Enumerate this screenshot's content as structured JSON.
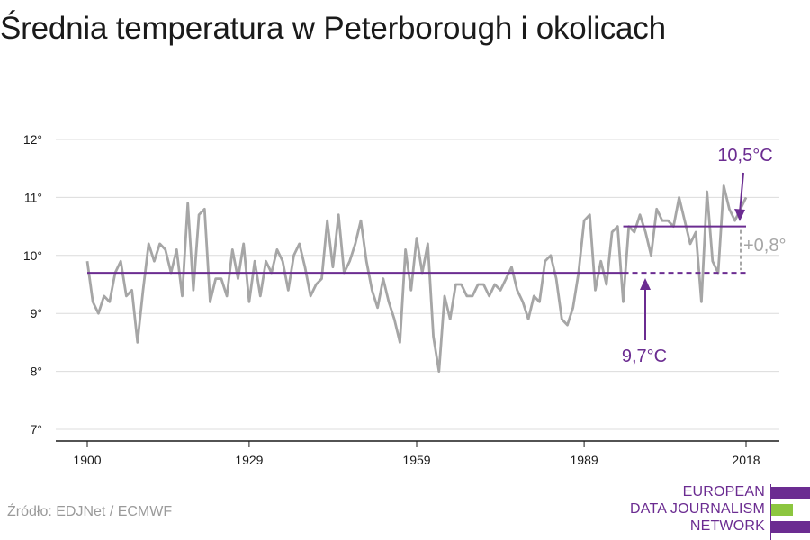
{
  "page": {
    "title": "Średnia temperatura w Peterborough i okolicach",
    "source": "Źródło: EDJNet / ECMWF"
  },
  "logo": {
    "lines": [
      "EUROPEAN",
      "DATA JOURNALISM",
      "NETWORK"
    ],
    "colors": {
      "purple": "#6b2c91",
      "green": "#8cc63f"
    }
  },
  "chart_data": {
    "type": "line",
    "title": "Średnia temperatura w Peterborough i okolicach",
    "xlabel": "",
    "ylabel": "",
    "xlim": [
      1900,
      2018
    ],
    "ylim": [
      7,
      12
    ],
    "x_ticks": [
      1900,
      1929,
      1959,
      1989,
      2018
    ],
    "y_ticks": [
      7,
      8,
      9,
      10,
      11,
      12
    ],
    "y_tick_labels": [
      "7°",
      "8°",
      "9°",
      "10°",
      "11°",
      "12°"
    ],
    "grid": "horizontal",
    "colors": {
      "series": "#a6a6a6",
      "reference": "#6b2c91",
      "difference": "#a6a6a6"
    },
    "series": [
      {
        "years": [
          1900,
          1901,
          1902,
          1903,
          1904,
          1905,
          1906,
          1907,
          1908,
          1909,
          1910,
          1911,
          1912,
          1913,
          1914,
          1915,
          1916,
          1917,
          1918,
          1919,
          1920,
          1921,
          1922,
          1923,
          1924,
          1925,
          1926,
          1927,
          1928,
          1929,
          1930,
          1931,
          1932,
          1933,
          1934,
          1935,
          1936,
          1937,
          1938,
          1939,
          1940,
          1941,
          1942,
          1943,
          1944,
          1945,
          1946,
          1947,
          1948,
          1949,
          1950,
          1951,
          1952,
          1953,
          1954,
          1955,
          1956,
          1957,
          1958,
          1959,
          1960,
          1961,
          1962,
          1963,
          1964,
          1965,
          1966,
          1967,
          1968,
          1969,
          1970,
          1971,
          1972,
          1973,
          1974,
          1975,
          1976,
          1977,
          1978,
          1979,
          1980,
          1981,
          1982,
          1983,
          1984,
          1985,
          1986,
          1987,
          1988,
          1989,
          1990,
          1991,
          1992,
          1993,
          1994,
          1995,
          1996,
          1997,
          1998,
          1999,
          2000,
          2001,
          2002,
          2003,
          2004,
          2005,
          2006,
          2007,
          2008,
          2009,
          2010,
          2011,
          2012,
          2013,
          2014,
          2015,
          2016,
          2017,
          2018
        ],
        "values": [
          9.9,
          9.2,
          9.0,
          9.3,
          9.2,
          9.7,
          9.9,
          9.3,
          9.4,
          8.5,
          9.4,
          10.2,
          9.9,
          10.2,
          10.1,
          9.7,
          10.1,
          9.3,
          10.9,
          9.4,
          10.7,
          10.8,
          9.2,
          9.6,
          9.6,
          9.3,
          10.1,
          9.6,
          10.2,
          9.2,
          9.9,
          9.3,
          9.9,
          9.7,
          10.1,
          9.9,
          9.4,
          10.0,
          10.2,
          9.8,
          9.3,
          9.5,
          9.6,
          10.6,
          9.8,
          10.7,
          9.7,
          9.9,
          10.2,
          10.6,
          9.9,
          9.4,
          9.1,
          9.6,
          9.2,
          8.9,
          8.5,
          10.1,
          9.4,
          10.3,
          9.7,
          10.2,
          8.6,
          8.0,
          9.3,
          8.9,
          9.5,
          9.5,
          9.3,
          9.3,
          9.5,
          9.5,
          9.3,
          9.5,
          9.4,
          9.6,
          9.8,
          9.4,
          9.2,
          8.9,
          9.3,
          9.2,
          9.9,
          10.0,
          9.6,
          8.9,
          8.8,
          9.1,
          9.7,
          10.6,
          10.7,
          9.4,
          9.9,
          9.5,
          10.4,
          10.5,
          9.2,
          10.5,
          10.4,
          10.7,
          10.4,
          10.0,
          10.8,
          10.6,
          10.6,
          10.5,
          11.0,
          10.6,
          10.2,
          10.4,
          9.2,
          11.1,
          9.9,
          9.7,
          11.2,
          10.8,
          10.6,
          10.8,
          11.0
        ]
      }
    ],
    "reference": {
      "value": 9.7,
      "label": "9,7°C",
      "from": 1900,
      "to": 1996
    },
    "reference_dashed": {
      "value": 9.7,
      "from": 1996,
      "to": 2018
    },
    "recent": {
      "value": 10.5,
      "label": "10,5°C",
      "from": 1996,
      "to": 2018
    },
    "difference": {
      "label": "+0,8°"
    }
  }
}
